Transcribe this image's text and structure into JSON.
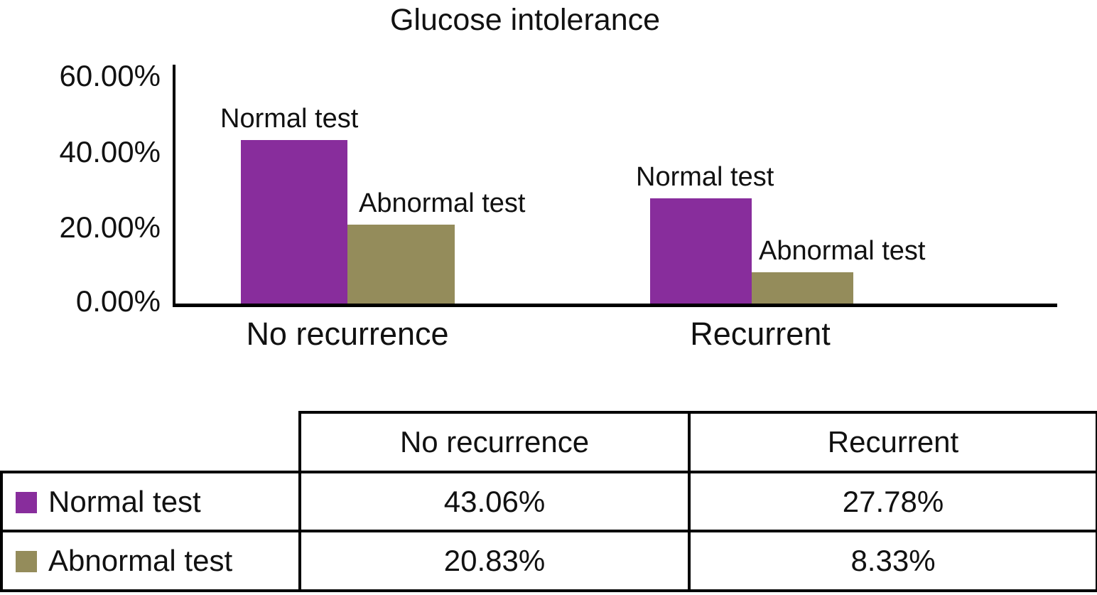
{
  "chart_data": {
    "type": "bar",
    "title": "Glucose intolerance",
    "categories": [
      "No recurrence",
      "Recurrent"
    ],
    "series": [
      {
        "name": "Normal test",
        "color": "#882D9C",
        "values": [
          43.06,
          27.78
        ]
      },
      {
        "name": "Abnormal test",
        "color": "#948C5B",
        "values": [
          20.83,
          8.33
        ]
      }
    ],
    "y_tick_labels": [
      "60.00%",
      "40.00%",
      "20.00%",
      "0.00%"
    ],
    "ylim": [
      0,
      60
    ],
    "xlabel": "",
    "ylabel": "",
    "grid": false,
    "legend_position": "table-below-chart",
    "bar_annotation": "series-name-above-each-bar",
    "value_suffix": "%"
  },
  "table": {
    "corner_label": "",
    "col_headers": [
      "No recurrence",
      "Recurrent"
    ],
    "rows": [
      {
        "label": "Normal test",
        "swatch_color": "#882D9C",
        "values": [
          "43.06%",
          "27.78%"
        ]
      },
      {
        "label": "Abnormal test",
        "swatch_color": "#948C5B",
        "values": [
          "20.83%",
          "8.33%"
        ]
      }
    ]
  },
  "colors": {
    "bar_normal_test": "#882D9C",
    "bar_abnormal_test": "#948C5B",
    "axis": "#000000",
    "text": "#111111",
    "background": "#FFFFFF"
  }
}
